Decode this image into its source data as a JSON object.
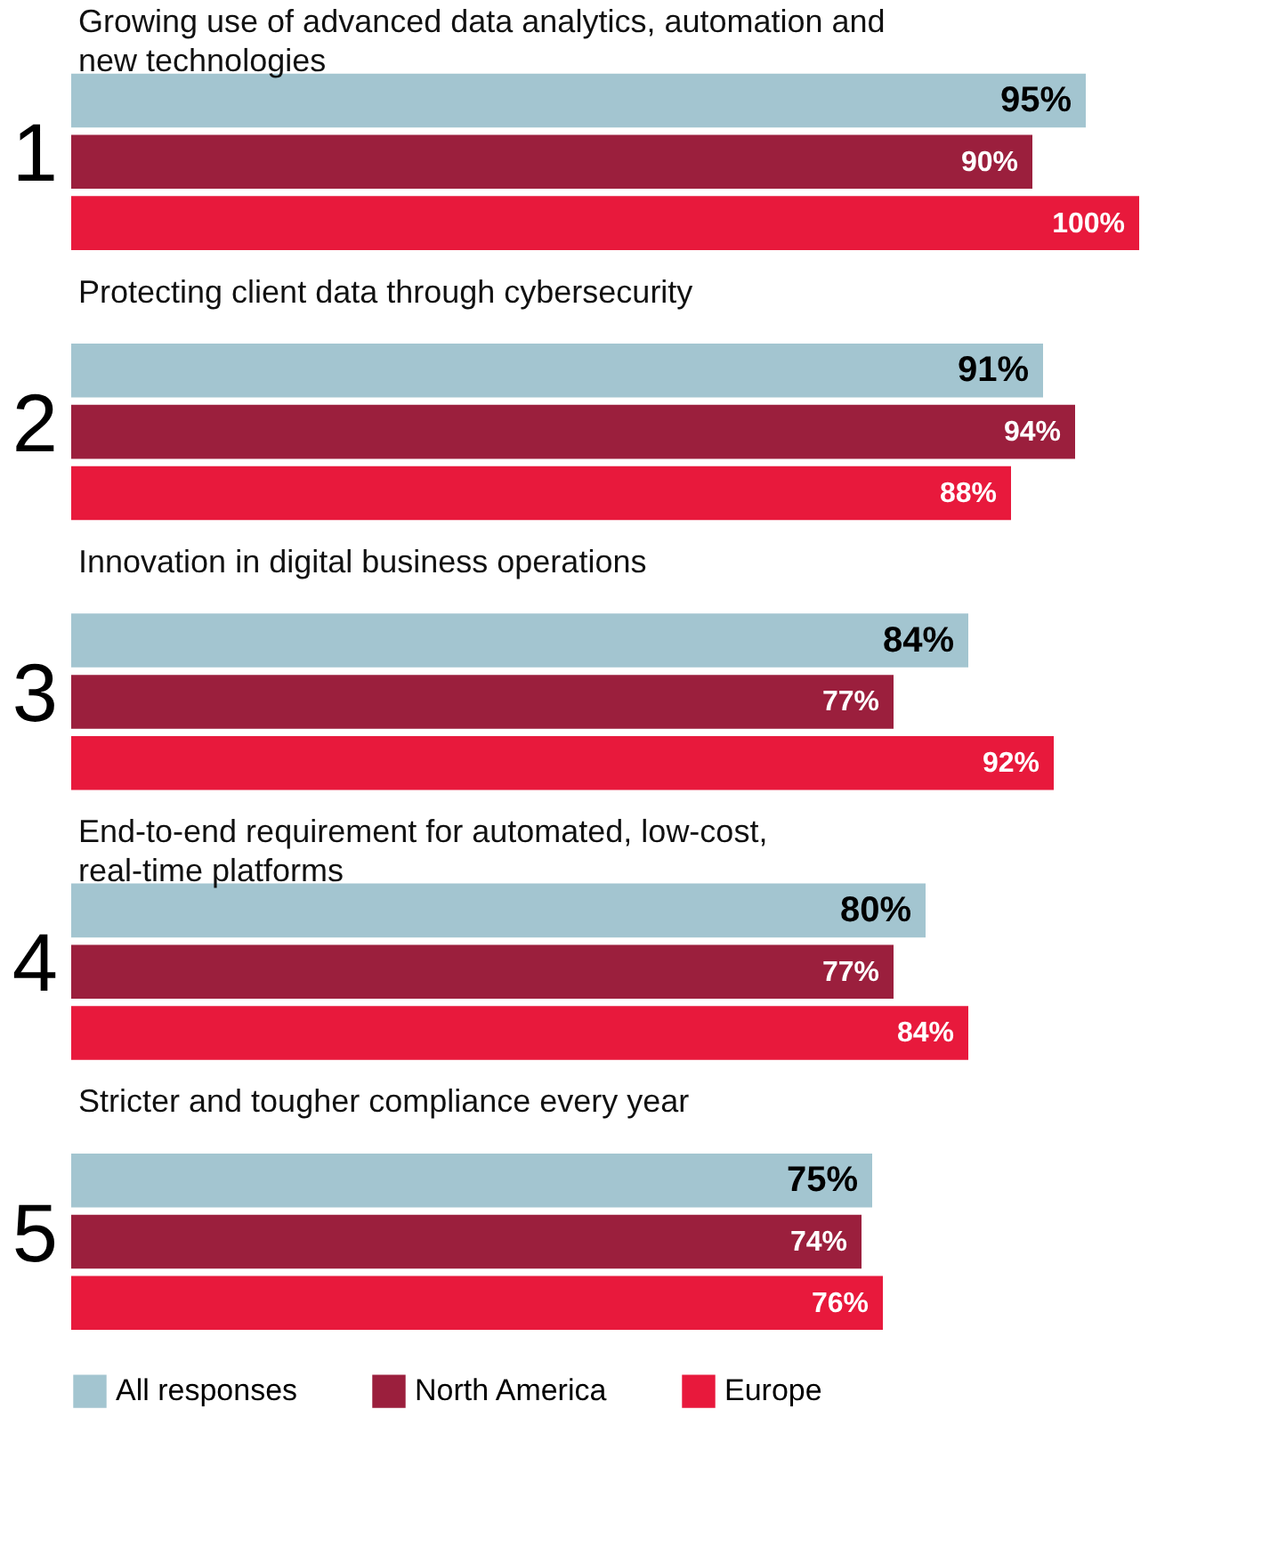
{
  "chart_data": {
    "type": "bar",
    "orientation": "horizontal",
    "legend": "bottom left",
    "categories": [
      "1",
      "2",
      "3",
      "4",
      "5"
    ],
    "annotations": [
      "Growing use of advanced data analytics, automation and new technologies",
      "Protecting client data through cybersecurity",
      "Innovation in digital business operations",
      "End-to-end requirement for automated, low-cost, real-time platforms",
      "Stricter and tougher compliance every year"
    ],
    "series": [
      {
        "name": "All responses",
        "color": "#a3c5d0",
        "values": [
          95,
          91,
          84,
          80,
          75
        ],
        "value_labels": [
          "95%",
          "91%",
          "84%",
          "80%",
          "75%"
        ]
      },
      {
        "name": "North America",
        "color": "#9b1f3d",
        "values": [
          90,
          94,
          77,
          77,
          74
        ],
        "value_labels": [
          "90%",
          "94%",
          "77%",
          "77%",
          "74%"
        ]
      },
      {
        "name": "Europe",
        "color": "#e8193c",
        "values": [
          100,
          88,
          92,
          84,
          76
        ],
        "value_labels": [
          "100%",
          "88%",
          "92%",
          "84%",
          "76%"
        ]
      }
    ]
  }
}
